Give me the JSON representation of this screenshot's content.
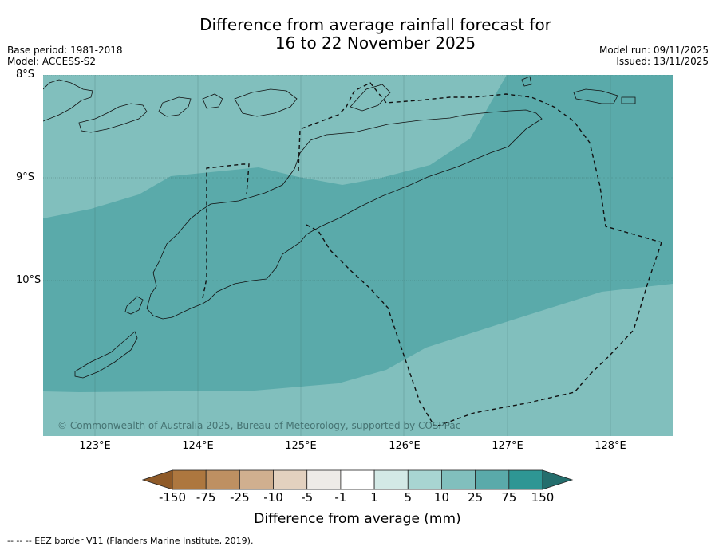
{
  "title": {
    "line1": "Difference from average rainfall forecast for",
    "line2": "16 to 22 November 2025"
  },
  "meta": {
    "base_period": "Base period: 1981-2018",
    "model": "Model: ACCESS-S2",
    "model_run": "Model run: 09/11/2025",
    "issued": "Issued: 13/11/2025"
  },
  "axes": {
    "lat_labels": [
      "8°S",
      "9°S",
      "10°S"
    ],
    "lon_labels": [
      "123°E",
      "124°E",
      "125°E",
      "126°E",
      "127°E",
      "128°E"
    ]
  },
  "copyright": "© Commonwealth of Australia 2025, Bureau of Meteorology, supported by COSPPac",
  "colorbar": {
    "ticks": [
      "-150",
      "-75",
      "-25",
      "-10",
      "-5",
      "-1",
      "1",
      "5",
      "10",
      "25",
      "75",
      "150"
    ],
    "colors": [
      "#ad773f",
      "#be9062",
      "#d0af8f",
      "#e3d1bf",
      "#eeebe7",
      "#ffffff",
      "#d3e9e6",
      "#a8d5d2",
      "#81bfbd",
      "#5aaaaa",
      "#2e9694"
    ],
    "under_color": "#8f5a28",
    "over_color": "#246e6d",
    "label": "Difference from average (mm)"
  },
  "regions": {
    "light_color": "#81bfbd",
    "dark_color": "#5aaaaa"
  },
  "footnote": "--  --  -- EEZ border V11 (Flanders Marine Institute, 2019)."
}
